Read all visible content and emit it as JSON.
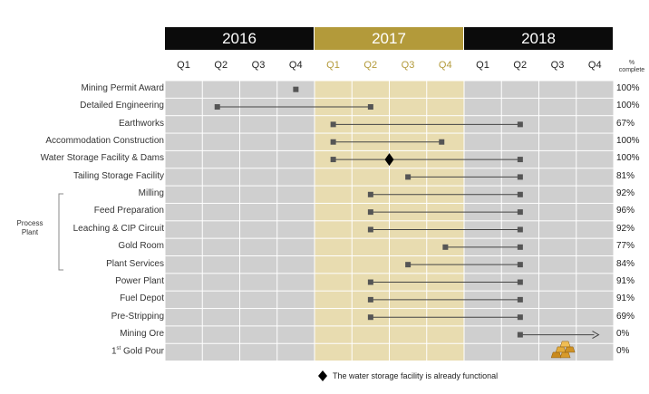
{
  "years": [
    "2016",
    "2017",
    "2018"
  ],
  "quarters": [
    "Q1",
    "Q2",
    "Q3",
    "Q4",
    "Q1",
    "Q2",
    "Q3",
    "Q4",
    "Q1",
    "Q2",
    "Q3",
    "Q4"
  ],
  "percent_header": [
    "%",
    "complete"
  ],
  "group_label": [
    "Process",
    "Plant"
  ],
  "colors": {
    "year_dark": "#0b0b0b",
    "year_gold": "#b39a3a",
    "grid": "#cfcfcf",
    "grid_gold": "#e8dcb0",
    "marker": "#555555",
    "line": "#444444"
  },
  "tasks": [
    {
      "label": "Mining Permit Award",
      "pct": "100%",
      "start": 3.5,
      "end": null
    },
    {
      "label": "Detailed Engineering",
      "pct": "100%",
      "start": 1.4,
      "end": 5.5
    },
    {
      "label": "Earthworks",
      "pct": "67%",
      "start": 4.5,
      "end": 9.5
    },
    {
      "label": "Accommodation Construction",
      "pct": "100%",
      "start": 4.5,
      "end": 7.4
    },
    {
      "label": "Water Storage Facility & Dams",
      "pct": "100%",
      "start": 4.5,
      "end": 9.5,
      "milestone": 6.0
    },
    {
      "label": "Tailing Storage Facility",
      "pct": "81%",
      "start": 6.5,
      "end": 9.5
    },
    {
      "label": "Milling",
      "pct": "92%",
      "start": 5.5,
      "end": 9.5
    },
    {
      "label": "Feed Preparation",
      "pct": "96%",
      "start": 5.5,
      "end": 9.5
    },
    {
      "label": "Leaching & CIP Circuit",
      "pct": "92%",
      "start": 5.5,
      "end": 9.5
    },
    {
      "label": "Gold Room",
      "pct": "77%",
      "start": 7.5,
      "end": 9.5
    },
    {
      "label": "Plant Services",
      "pct": "84%",
      "start": 6.5,
      "end": 9.5
    },
    {
      "label": "Power Plant",
      "pct": "91%",
      "start": 5.5,
      "end": 9.5
    },
    {
      "label": "Fuel Depot",
      "pct": "91%",
      "start": 5.5,
      "end": 9.5
    },
    {
      "label": "Pre-Stripping",
      "pct": "69%",
      "start": 5.5,
      "end": 9.5
    },
    {
      "label": "Mining Ore",
      "pct": "0%",
      "start": 9.5,
      "end": 11.6,
      "arrow": true
    },
    {
      "label": "1st Gold Pour",
      "label_main": "1",
      "label_sup": "st",
      "label_rest": " Gold Pour",
      "pct": "0%",
      "start": null,
      "end": null,
      "gold_icon": 10.5
    }
  ],
  "legend_text": "The  water storage  facility  is  already  functional"
}
